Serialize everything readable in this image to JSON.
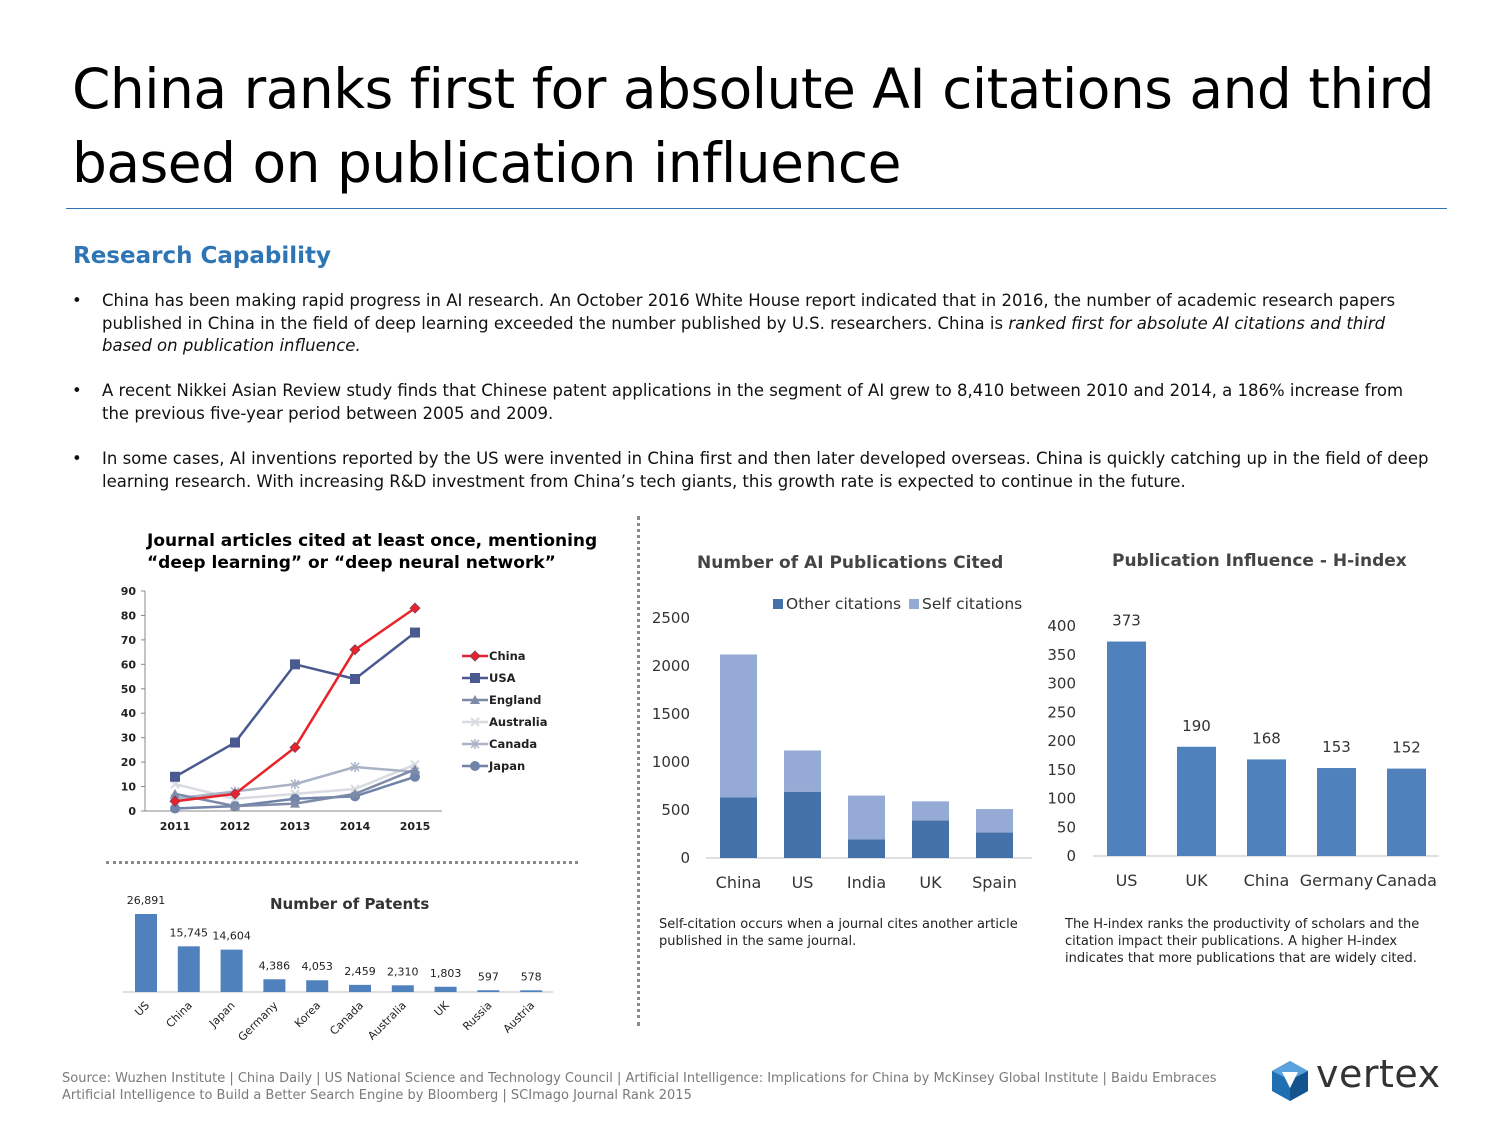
{
  "title": "China ranks first for absolute AI citations and third based on publication influence",
  "section_heading": "Research Capability",
  "bullets": [
    {
      "text": "China has been making rapid progress in AI research. An October 2016 White House report indicated that in 2016, the number of academic research papers published in China in the field of deep learning exceeded the number published by U.S. researchers. China is ",
      "emphasis": "ranked first for absolute AI citations and third based on publication influence."
    },
    {
      "text": "A recent Nikkei Asian Review study finds that Chinese patent applications in the segment of AI grew to 8,410 between 2010 and 2014, a 186% increase from the previous five-year period between 2005 and 2009.",
      "emphasis": ""
    },
    {
      "text": "In some cases, AI inventions reported by the US were invented in China first and then later developed overseas. China is quickly catching up in the field of deep learning research. With increasing R&D investment from China’s tech giants, this growth rate is expected to continue in the future.",
      "emphasis": ""
    }
  ],
  "bullet_glyph": "•",
  "notes": {
    "self_citation": "Self-citation occurs when a journal cites another article published in the same journal.",
    "h_index": "The H-index ranks the productivity of scholars and the citation impact their publications.  A higher H-index indicates that more publications that are widely cited."
  },
  "source": "Source: Wuzhen Institute | China Daily | US National Science and Technology Council | Artificial Intelligence: Implications for China by McKinsey Global Institute | Baidu Embraces Artificial Intelligence to Build a Better Search Engine by Bloomberg | SCImago Journal Rank 2015",
  "logo": {
    "text": "vertex",
    "icon": "cube-logo-icon",
    "color": "#1f6fb2"
  },
  "chart_data": [
    {
      "id": "journal-articles",
      "type": "line",
      "title_lines": [
        "Journal articles cited at least once, mentioning",
        "“deep learning” or “deep neural network”"
      ],
      "x": [
        2011,
        2012,
        2013,
        2014,
        2015
      ],
      "ylim": [
        0,
        90
      ],
      "yticks": [
        0,
        10,
        20,
        30,
        40,
        50,
        60,
        70,
        80,
        90
      ],
      "grid": false,
      "legend": "right",
      "series": [
        {
          "name": "China",
          "values": [
            4,
            7,
            26,
            66,
            83
          ],
          "color": "#e8232a",
          "marker": "diamond"
        },
        {
          "name": "USA",
          "values": [
            14,
            28,
            60,
            54,
            73
          ],
          "color": "#4a5a91",
          "marker": "square"
        },
        {
          "name": "England",
          "values": [
            7,
            2,
            3,
            7,
            17
          ],
          "color": "#7d8ba8",
          "marker": "triangle"
        },
        {
          "name": "Australia",
          "values": [
            11,
            5,
            7,
            9,
            19
          ],
          "color": "#d8dbe0",
          "marker": "x"
        },
        {
          "name": "Canada",
          "values": [
            5,
            8,
            11,
            18,
            16
          ],
          "color": "#a9b3c6",
          "marker": "star"
        },
        {
          "name": "Japan",
          "values": [
            1,
            2,
            5,
            6,
            14
          ],
          "color": "#6f84a8",
          "marker": "circle"
        }
      ]
    },
    {
      "id": "patents",
      "type": "bar",
      "title": "Number of Patents",
      "categories": [
        "US",
        "China",
        "Japan",
        "Germany",
        "Korea",
        "Canada",
        "Australia",
        "UK",
        "Russia",
        "Austria"
      ],
      "values": [
        26891,
        15745,
        14604,
        4386,
        4053,
        2459,
        2310,
        1803,
        597,
        578
      ],
      "labels": [
        "26,891",
        "15,745",
        "14,604",
        "4,386",
        "4,053",
        "2,459",
        "2,310",
        "1,803",
        "597",
        "578"
      ],
      "color": "#4f81bd"
    },
    {
      "id": "ai-publications",
      "type": "bar",
      "stacked": true,
      "title": "Number of AI Publications Cited",
      "categories": [
        "China",
        "US",
        "India",
        "UK",
        "Spain"
      ],
      "ylim": [
        0,
        2500
      ],
      "yticks": [
        0,
        500,
        1000,
        1500,
        2000,
        2500
      ],
      "legend": "top",
      "series": [
        {
          "name": "Other citations",
          "values": [
            630,
            690,
            195,
            390,
            265
          ],
          "color": "#4472a8"
        },
        {
          "name": "Self citations",
          "values": [
            1490,
            430,
            455,
            200,
            245
          ],
          "color": "#95aad4"
        }
      ]
    },
    {
      "id": "h-index",
      "type": "bar",
      "title": "Publication Influence - H-index",
      "categories": [
        "US",
        "UK",
        "China",
        "Germany",
        "Canada"
      ],
      "values": [
        373,
        190,
        168,
        153,
        152
      ],
      "ylim": [
        0,
        400
      ],
      "yticks": [
        0,
        50,
        100,
        150,
        200,
        250,
        300,
        350,
        400
      ],
      "color": "#4f81bd"
    }
  ]
}
